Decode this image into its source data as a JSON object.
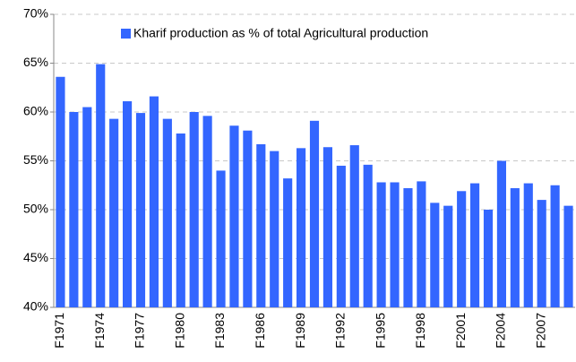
{
  "chart_data": {
    "type": "bar",
    "categories": [
      "F1971",
      null,
      null,
      "F1974",
      null,
      null,
      "F1977",
      null,
      null,
      "F1980",
      null,
      null,
      "F1983",
      null,
      null,
      "F1986",
      null,
      null,
      "F1989",
      null,
      null,
      "F1992",
      null,
      null,
      "F1995",
      null,
      null,
      "F1998",
      null,
      null,
      "F2001",
      null,
      null,
      "F2004",
      null,
      null,
      "F2007",
      null,
      null
    ],
    "series": [
      {
        "name": "Kharif production as % of total Agricultural production",
        "color": "#3366ff",
        "values": [
          63.6,
          60.0,
          60.5,
          64.9,
          59.3,
          61.1,
          59.9,
          61.6,
          59.3,
          57.8,
          60.0,
          59.6,
          54.0,
          58.6,
          58.1,
          56.7,
          56.0,
          53.2,
          56.3,
          59.1,
          56.4,
          54.5,
          56.6,
          54.6,
          52.8,
          52.8,
          52.2,
          52.9,
          50.7,
          50.4,
          51.9,
          52.7,
          50.0,
          55.0,
          52.2,
          52.7,
          51.0,
          52.5,
          50.4
        ]
      }
    ],
    "ylim": [
      40,
      70
    ],
    "yticks": [
      {
        "value": 40,
        "label": "40%"
      },
      {
        "value": 45,
        "label": "45%"
      },
      {
        "value": 50,
        "label": "50%"
      },
      {
        "value": 55,
        "label": "55%"
      },
      {
        "value": 60,
        "label": "60%"
      },
      {
        "value": 65,
        "label": "65%"
      },
      {
        "value": 70,
        "label": "70%"
      }
    ],
    "grid": true,
    "legend": "top"
  }
}
